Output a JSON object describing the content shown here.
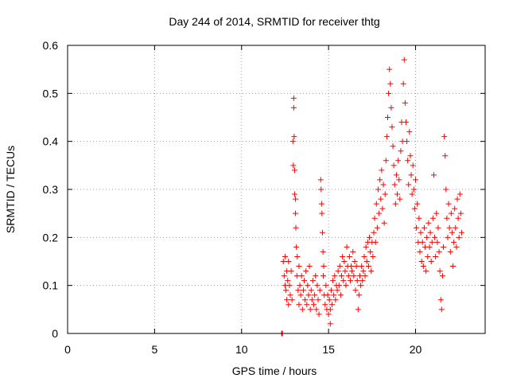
{
  "chart_data": {
    "type": "scatter",
    "title": "Day 244 of 2014, SRMTID for receiver thtg",
    "xlabel": "GPS time / hours",
    "ylabel": "SRMTID / TECUs",
    "xlim": [
      0,
      24
    ],
    "ylim": [
      0,
      0.6
    ],
    "x_ticks": [
      0,
      5,
      10,
      15,
      20
    ],
    "x_tick_labels": [
      "0",
      "5",
      "10",
      "15",
      "20"
    ],
    "y_ticks": [
      0,
      0.1,
      0.2,
      0.3,
      0.4,
      0.5,
      0.6
    ],
    "y_tick_labels": [
      "0",
      "0.1",
      "0.2",
      "0.3",
      "0.4",
      "0.5",
      "0.6"
    ],
    "grid": true,
    "marker": "plus",
    "color": "#ff0000",
    "series": [
      {
        "name": "SRMTID",
        "points": [
          [
            12.3,
            0.0
          ],
          [
            12.32,
            0.0
          ],
          [
            12.35,
            0.0
          ],
          [
            12.4,
            0.15
          ],
          [
            12.45,
            0.12
          ],
          [
            12.5,
            0.1
          ],
          [
            12.5,
            0.16
          ],
          [
            12.55,
            0.09
          ],
          [
            12.6,
            0.13
          ],
          [
            12.6,
            0.07
          ],
          [
            12.65,
            0.11
          ],
          [
            12.7,
            0.06
          ],
          [
            12.7,
            0.15
          ],
          [
            12.75,
            0.1
          ],
          [
            12.8,
            0.08
          ],
          [
            12.85,
            0.13
          ],
          [
            12.9,
            0.07
          ],
          [
            12.95,
            0.4
          ],
          [
            12.97,
            0.35
          ],
          [
            13.0,
            0.49
          ],
          [
            13.0,
            0.47
          ],
          [
            13.02,
            0.41
          ],
          [
            13.05,
            0.34
          ],
          [
            13.05,
            0.29
          ],
          [
            13.1,
            0.28
          ],
          [
            13.1,
            0.25
          ],
          [
            13.12,
            0.22
          ],
          [
            13.15,
            0.18
          ],
          [
            13.18,
            0.12
          ],
          [
            13.2,
            0.16
          ],
          [
            13.25,
            0.09
          ],
          [
            13.3,
            0.14
          ],
          [
            13.3,
            0.06
          ],
          [
            13.35,
            0.1
          ],
          [
            13.4,
            0.08
          ],
          [
            13.45,
            0.12
          ],
          [
            13.5,
            0.05
          ],
          [
            13.55,
            0.09
          ],
          [
            13.6,
            0.11
          ],
          [
            13.65,
            0.07
          ],
          [
            13.7,
            0.13
          ],
          [
            13.75,
            0.06
          ],
          [
            13.8,
            0.1
          ],
          [
            13.85,
            0.08
          ],
          [
            13.9,
            0.14
          ],
          [
            13.95,
            0.05
          ],
          [
            14.0,
            0.09
          ],
          [
            14.05,
            0.07
          ],
          [
            14.1,
            0.11
          ],
          [
            14.15,
            0.06
          ],
          [
            14.2,
            0.08
          ],
          [
            14.25,
            0.12
          ],
          [
            14.3,
            0.05
          ],
          [
            14.35,
            0.1
          ],
          [
            14.4,
            0.07
          ],
          [
            14.45,
            0.04
          ],
          [
            14.5,
            0.09
          ],
          [
            14.55,
            0.32
          ],
          [
            14.57,
            0.3
          ],
          [
            14.6,
            0.27
          ],
          [
            14.62,
            0.25
          ],
          [
            14.65,
            0.21
          ],
          [
            14.68,
            0.17
          ],
          [
            14.7,
            0.12
          ],
          [
            14.72,
            0.14
          ],
          [
            14.75,
            0.08
          ],
          [
            14.8,
            0.06
          ],
          [
            14.85,
            0.1
          ],
          [
            14.9,
            0.05
          ],
          [
            14.95,
            0.08
          ],
          [
            15.0,
            0.04
          ],
          [
            15.05,
            0.07
          ],
          [
            15.1,
            0.02
          ],
          [
            15.1,
            0.05
          ],
          [
            15.15,
            0.09
          ],
          [
            15.2,
            0.06
          ],
          [
            15.25,
            0.11
          ],
          [
            15.3,
            0.08
          ],
          [
            15.35,
            0.12
          ],
          [
            15.4,
            0.07
          ],
          [
            15.45,
            0.1
          ],
          [
            15.5,
            0.09
          ],
          [
            15.55,
            0.13
          ],
          [
            15.6,
            0.1
          ],
          [
            15.65,
            0.14
          ],
          [
            15.7,
            0.08
          ],
          [
            15.75,
            0.12
          ],
          [
            15.8,
            0.16
          ],
          [
            15.85,
            0.11
          ],
          [
            15.9,
            0.15
          ],
          [
            15.95,
            0.13
          ],
          [
            16.0,
            0.1
          ],
          [
            16.05,
            0.18
          ],
          [
            16.1,
            0.14
          ],
          [
            16.15,
            0.12
          ],
          [
            16.2,
            0.16
          ],
          [
            16.25,
            0.11
          ],
          [
            16.3,
            0.14
          ],
          [
            16.35,
            0.13
          ],
          [
            16.4,
            0.17
          ],
          [
            16.45,
            0.12
          ],
          [
            16.5,
            0.15
          ],
          [
            16.55,
            0.09
          ],
          [
            16.6,
            0.14
          ],
          [
            16.65,
            0.11
          ],
          [
            16.7,
            0.05
          ],
          [
            16.75,
            0.08
          ],
          [
            16.8,
            0.12
          ],
          [
            16.85,
            0.1
          ],
          [
            16.9,
            0.14
          ],
          [
            16.95,
            0.11
          ],
          [
            17.0,
            0.13
          ],
          [
            17.05,
            0.16
          ],
          [
            17.1,
            0.12
          ],
          [
            17.15,
            0.18
          ],
          [
            17.2,
            0.15
          ],
          [
            17.25,
            0.19
          ],
          [
            17.3,
            0.14
          ],
          [
            17.35,
            0.2
          ],
          [
            17.4,
            0.17
          ],
          [
            17.45,
            0.13
          ],
          [
            17.5,
            0.19
          ],
          [
            17.55,
            0.16
          ],
          [
            17.6,
            0.21
          ],
          [
            17.65,
            0.24
          ],
          [
            17.7,
            0.19
          ],
          [
            17.75,
            0.27
          ],
          [
            17.8,
            0.22
          ],
          [
            17.85,
            0.3
          ],
          [
            17.9,
            0.25
          ],
          [
            17.95,
            0.32
          ],
          [
            18.0,
            0.28
          ],
          [
            18.05,
            0.34
          ],
          [
            18.1,
            0.26
          ],
          [
            18.15,
            0.31
          ],
          [
            18.2,
            0.23
          ],
          [
            18.25,
            0.29
          ],
          [
            18.3,
            0.36
          ],
          [
            18.35,
            0.41
          ],
          [
            18.4,
            0.45
          ],
          [
            18.45,
            0.5
          ],
          [
            18.5,
            0.55
          ],
          [
            18.55,
            0.52
          ],
          [
            18.6,
            0.47
          ],
          [
            18.65,
            0.43
          ],
          [
            18.7,
            0.39
          ],
          [
            18.75,
            0.35
          ],
          [
            18.8,
            0.31
          ],
          [
            18.85,
            0.27
          ],
          [
            18.9,
            0.33
          ],
          [
            18.95,
            0.29
          ],
          [
            19.0,
            0.36
          ],
          [
            19.05,
            0.32
          ],
          [
            19.1,
            0.28
          ],
          [
            19.15,
            0.38
          ],
          [
            19.2,
            0.44
          ],
          [
            19.25,
            0.4
          ],
          [
            19.3,
            0.52
          ],
          [
            19.35,
            0.57
          ],
          [
            19.4,
            0.48
          ],
          [
            19.45,
            0.44
          ],
          [
            19.5,
            0.4
          ],
          [
            19.55,
            0.36
          ],
          [
            19.6,
            0.31
          ],
          [
            19.65,
            0.42
          ],
          [
            19.7,
            0.37
          ],
          [
            19.75,
            0.33
          ],
          [
            19.8,
            0.29
          ],
          [
            19.85,
            0.35
          ],
          [
            19.9,
            0.3
          ],
          [
            19.95,
            0.26
          ],
          [
            20.0,
            0.32
          ],
          [
            20.05,
            0.22
          ],
          [
            20.1,
            0.27
          ],
          [
            20.15,
            0.19
          ],
          [
            20.2,
            0.24
          ],
          [
            20.25,
            0.17
          ],
          [
            20.3,
            0.21
          ],
          [
            20.35,
            0.15
          ],
          [
            20.4,
            0.19
          ],
          [
            20.45,
            0.14
          ],
          [
            20.5,
            0.22
          ],
          [
            20.55,
            0.18
          ],
          [
            20.6,
            0.13
          ],
          [
            20.65,
            0.2
          ],
          [
            20.7,
            0.16
          ],
          [
            20.75,
            0.23
          ],
          [
            20.8,
            0.18
          ],
          [
            20.85,
            0.21
          ],
          [
            20.9,
            0.15
          ],
          [
            20.95,
            0.19
          ],
          [
            21.0,
            0.24
          ],
          [
            21.05,
            0.33
          ],
          [
            21.1,
            0.2
          ],
          [
            21.15,
            0.16
          ],
          [
            21.2,
            0.25
          ],
          [
            21.25,
            0.19
          ],
          [
            21.3,
            0.22
          ],
          [
            21.35,
            0.17
          ],
          [
            21.4,
            0.13
          ],
          [
            21.45,
            0.07
          ],
          [
            21.5,
            0.05
          ],
          [
            21.55,
            0.12
          ],
          [
            21.6,
            0.18
          ],
          [
            21.65,
            0.41
          ],
          [
            21.7,
            0.37
          ],
          [
            21.75,
            0.3
          ],
          [
            21.8,
            0.24
          ],
          [
            21.85,
            0.2
          ],
          [
            21.9,
            0.27
          ],
          [
            21.95,
            0.22
          ],
          [
            22.0,
            0.17
          ],
          [
            22.05,
            0.25
          ],
          [
            22.1,
            0.21
          ],
          [
            22.15,
            0.14
          ],
          [
            22.2,
            0.19
          ],
          [
            22.25,
            0.26
          ],
          [
            22.3,
            0.22
          ],
          [
            22.35,
            0.18
          ],
          [
            22.4,
            0.28
          ],
          [
            22.45,
            0.24
          ],
          [
            22.5,
            0.2
          ],
          [
            22.55,
            0.29
          ],
          [
            22.6,
            0.25
          ],
          [
            22.65,
            0.21
          ]
        ]
      }
    ]
  }
}
